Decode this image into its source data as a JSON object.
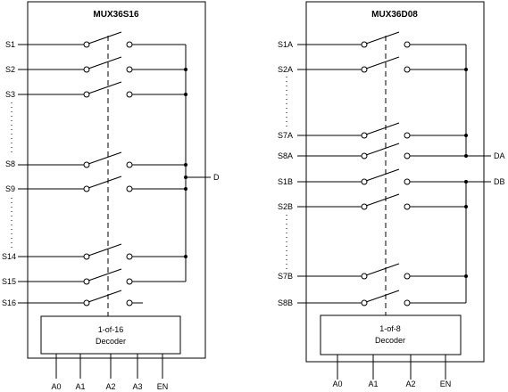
{
  "diagrams": [
    {
      "title": "MUX36S16",
      "inputs": [
        "S1",
        "S2",
        "S3",
        "S8",
        "S9",
        "S14",
        "S15",
        "S16"
      ],
      "outputs": [
        "D"
      ],
      "decoder": [
        "1-of-16",
        "Decoder"
      ],
      "controls": [
        "A0",
        "A1",
        "A2",
        "A3",
        "EN"
      ]
    },
    {
      "title": "MUX36D08",
      "inputs": [
        "S1A",
        "S2A",
        "S7A",
        "S8A",
        "S1B",
        "S2B",
        "S7B",
        "S8B"
      ],
      "outputs": [
        "DA",
        "DB"
      ],
      "decoder": [
        "1-of-8",
        "Decoder"
      ],
      "controls": [
        "A0",
        "A1",
        "A2",
        "EN"
      ]
    }
  ]
}
